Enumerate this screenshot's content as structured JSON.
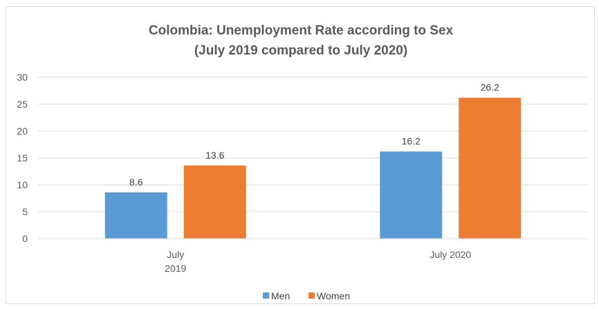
{
  "chart_data": {
    "type": "bar",
    "title_lines": [
      "Colombia: Unemployment Rate according to Sex",
      "(July 2019 compared to July 2020)"
    ],
    "categories": [
      [
        "July",
        "2019"
      ],
      [
        "July 2020"
      ]
    ],
    "series": [
      {
        "name": "Men",
        "values": [
          8.6,
          16.2
        ],
        "labels": [
          "8.6",
          "16.2"
        ],
        "color": "#5b9bd5"
      },
      {
        "name": "Women",
        "values": [
          13.6,
          26.2
        ],
        "labels": [
          "13.6",
          "26.2"
        ],
        "color": "#ed7d31"
      }
    ],
    "ylim": [
      0,
      30
    ],
    "yticks": [
      "0",
      "5",
      "10",
      "15",
      "20",
      "25",
      "30"
    ],
    "grid": true,
    "legend_position": "bottom"
  }
}
